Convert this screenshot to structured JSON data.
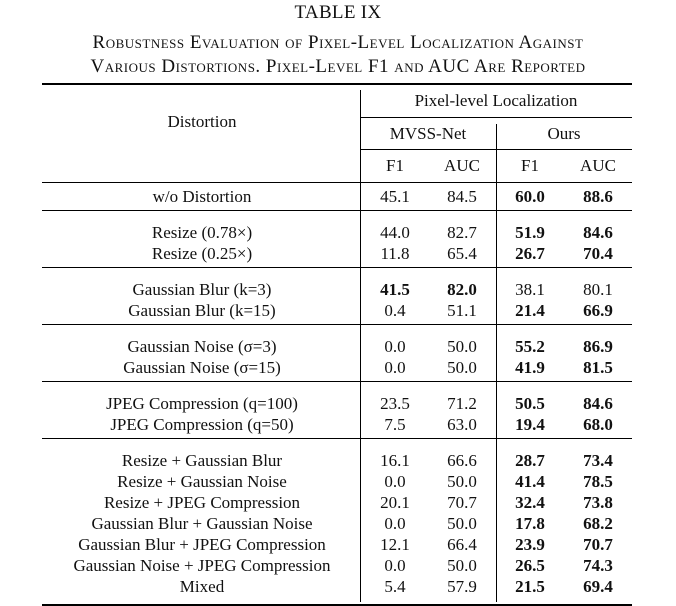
{
  "table": {
    "label": "TABLE IX",
    "caption_line1": "Robustness Evaluation of Pixel-Level Localization Against",
    "caption_line2": "Various Distortions. Pixel-Level F1 and AUC Are Reported",
    "header": {
      "distortion": "Distortion",
      "group": "Pixel-level Localization",
      "method_a": "MVSS-Net",
      "method_b": "Ours",
      "f1": "F1",
      "auc": "AUC"
    },
    "groups": [
      {
        "rows": [
          {
            "name": "w/o Distortion",
            "mvss_f1": "45.1",
            "mvss_auc": "84.5",
            "ours_f1": "60.0",
            "ours_auc": "88.6",
            "bold": [
              "ours_f1",
              "ours_auc"
            ]
          }
        ]
      },
      {
        "rows": [
          {
            "name": "Resize (0.78×)",
            "mvss_f1": "44.0",
            "mvss_auc": "82.7",
            "ours_f1": "51.9",
            "ours_auc": "84.6",
            "bold": [
              "ours_f1",
              "ours_auc"
            ]
          },
          {
            "name": "Resize (0.25×)",
            "mvss_f1": "11.8",
            "mvss_auc": "65.4",
            "ours_f1": "26.7",
            "ours_auc": "70.4",
            "bold": [
              "ours_f1",
              "ours_auc"
            ]
          }
        ]
      },
      {
        "rows": [
          {
            "name": "Gaussian Blur (k=3)",
            "mvss_f1": "41.5",
            "mvss_auc": "82.0",
            "ours_f1": "38.1",
            "ours_auc": "80.1",
            "bold": [
              "mvss_f1",
              "mvss_auc"
            ]
          },
          {
            "name": "Gaussian Blur (k=15)",
            "mvss_f1": "0.4",
            "mvss_auc": "51.1",
            "ours_f1": "21.4",
            "ours_auc": "66.9",
            "bold": [
              "ours_f1",
              "ours_auc"
            ]
          }
        ]
      },
      {
        "rows": [
          {
            "name": "Gaussian Noise (σ=3)",
            "mvss_f1": "0.0",
            "mvss_auc": "50.0",
            "ours_f1": "55.2",
            "ours_auc": "86.9",
            "bold": [
              "ours_f1",
              "ours_auc"
            ]
          },
          {
            "name": "Gaussian Noise (σ=15)",
            "mvss_f1": "0.0",
            "mvss_auc": "50.0",
            "ours_f1": "41.9",
            "ours_auc": "81.5",
            "bold": [
              "ours_f1",
              "ours_auc"
            ]
          }
        ]
      },
      {
        "rows": [
          {
            "name": "JPEG Compression (q=100)",
            "mvss_f1": "23.5",
            "mvss_auc": "71.2",
            "ours_f1": "50.5",
            "ours_auc": "84.6",
            "bold": [
              "ours_f1",
              "ours_auc"
            ]
          },
          {
            "name": "JPEG Compression (q=50)",
            "mvss_f1": "7.5",
            "mvss_auc": "63.0",
            "ours_f1": "19.4",
            "ours_auc": "68.0",
            "bold": [
              "ours_f1",
              "ours_auc"
            ]
          }
        ]
      },
      {
        "rows": [
          {
            "name": "Resize + Gaussian Blur",
            "mvss_f1": "16.1",
            "mvss_auc": "66.6",
            "ours_f1": "28.7",
            "ours_auc": "73.4",
            "bold": [
              "ours_f1",
              "ours_auc"
            ]
          },
          {
            "name": "Resize + Gaussian Noise",
            "mvss_f1": "0.0",
            "mvss_auc": "50.0",
            "ours_f1": "41.4",
            "ours_auc": "78.5",
            "bold": [
              "ours_f1",
              "ours_auc"
            ]
          },
          {
            "name": "Resize + JPEG Compression",
            "mvss_f1": "20.1",
            "mvss_auc": "70.7",
            "ours_f1": "32.4",
            "ours_auc": "73.8",
            "bold": [
              "ours_f1",
              "ours_auc"
            ]
          },
          {
            "name": "Gaussian Blur + Gaussian Noise",
            "mvss_f1": "0.0",
            "mvss_auc": "50.0",
            "ours_f1": "17.8",
            "ours_auc": "68.2",
            "bold": [
              "ours_f1",
              "ours_auc"
            ]
          },
          {
            "name": "Gaussian Blur + JPEG Compression",
            "mvss_f1": "12.1",
            "mvss_auc": "66.4",
            "ours_f1": "23.9",
            "ours_auc": "70.7",
            "bold": [
              "ours_f1",
              "ours_auc"
            ]
          },
          {
            "name": "Gaussian Noise + JPEG Compression",
            "mvss_f1": "0.0",
            "mvss_auc": "50.0",
            "ours_f1": "26.5",
            "ours_auc": "74.3",
            "bold": [
              "ours_f1",
              "ours_auc"
            ]
          },
          {
            "name": "Mixed",
            "mvss_f1": "5.4",
            "mvss_auc": "57.9",
            "ours_f1": "21.5",
            "ours_auc": "69.4",
            "bold": [
              "ours_f1",
              "ours_auc"
            ]
          }
        ]
      }
    ]
  }
}
